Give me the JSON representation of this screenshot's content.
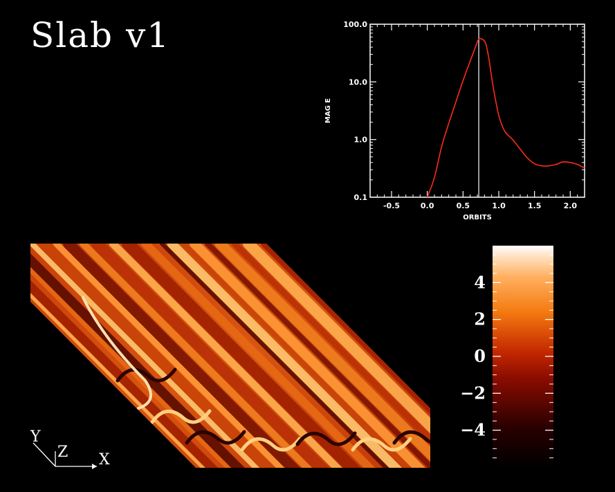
{
  "title": "Slab v1",
  "colors": {
    "background": "#000000",
    "line": "#ff2a1a",
    "marker": "#ffffff",
    "axes": "#ffffff"
  },
  "chart_data": [
    {
      "type": "line",
      "title": "",
      "xlabel": "ORBITS",
      "ylabel": "MAG E",
      "xscale": "linear",
      "yscale": "log",
      "xlim": [
        -0.8,
        2.2
      ],
      "ylim": [
        0.1,
        100.0
      ],
      "xticks": [
        -0.5,
        0.0,
        0.5,
        1.0,
        1.5,
        2.0
      ],
      "xtick_labels": [
        "-0.5",
        "0.0",
        "0.5",
        "1.0",
        "1.5",
        "2.0"
      ],
      "yticks": [
        0.1,
        1.0,
        10.0,
        100.0
      ],
      "ytick_labels": [
        "0.1",
        "1.0",
        "10.0",
        "100.0"
      ],
      "vertical_marker_x": 0.72,
      "series": [
        {
          "x": [
            0.0,
            0.1,
            0.2,
            0.3,
            0.4,
            0.5,
            0.6,
            0.68,
            0.72,
            0.78,
            0.82,
            0.86,
            0.9,
            0.95,
            1.0,
            1.05,
            1.1,
            1.2,
            1.3,
            1.4,
            1.5,
            1.6,
            1.7,
            1.8,
            1.9,
            2.0,
            2.1,
            2.2
          ],
          "y": [
            0.1,
            0.22,
            0.75,
            1.9,
            4.5,
            10.5,
            23,
            42,
            55,
            54,
            45,
            26,
            12,
            5.2,
            2.6,
            1.7,
            1.3,
            0.98,
            0.68,
            0.48,
            0.38,
            0.35,
            0.35,
            0.37,
            0.41,
            0.4,
            0.37,
            0.32
          ]
        }
      ]
    },
    {
      "type": "heatmap",
      "title": "",
      "colorbar": {
        "range": [
          -6,
          6
        ],
        "ticks": [
          -4,
          -2,
          0,
          2,
          4
        ],
        "tick_labels": [
          "−4",
          "−2",
          "0",
          "2",
          "4"
        ],
        "colormap": "black-red-orange-white"
      }
    }
  ],
  "axes_triad": {
    "x_label": "X",
    "y_label": "Y",
    "z_label": "Z"
  }
}
